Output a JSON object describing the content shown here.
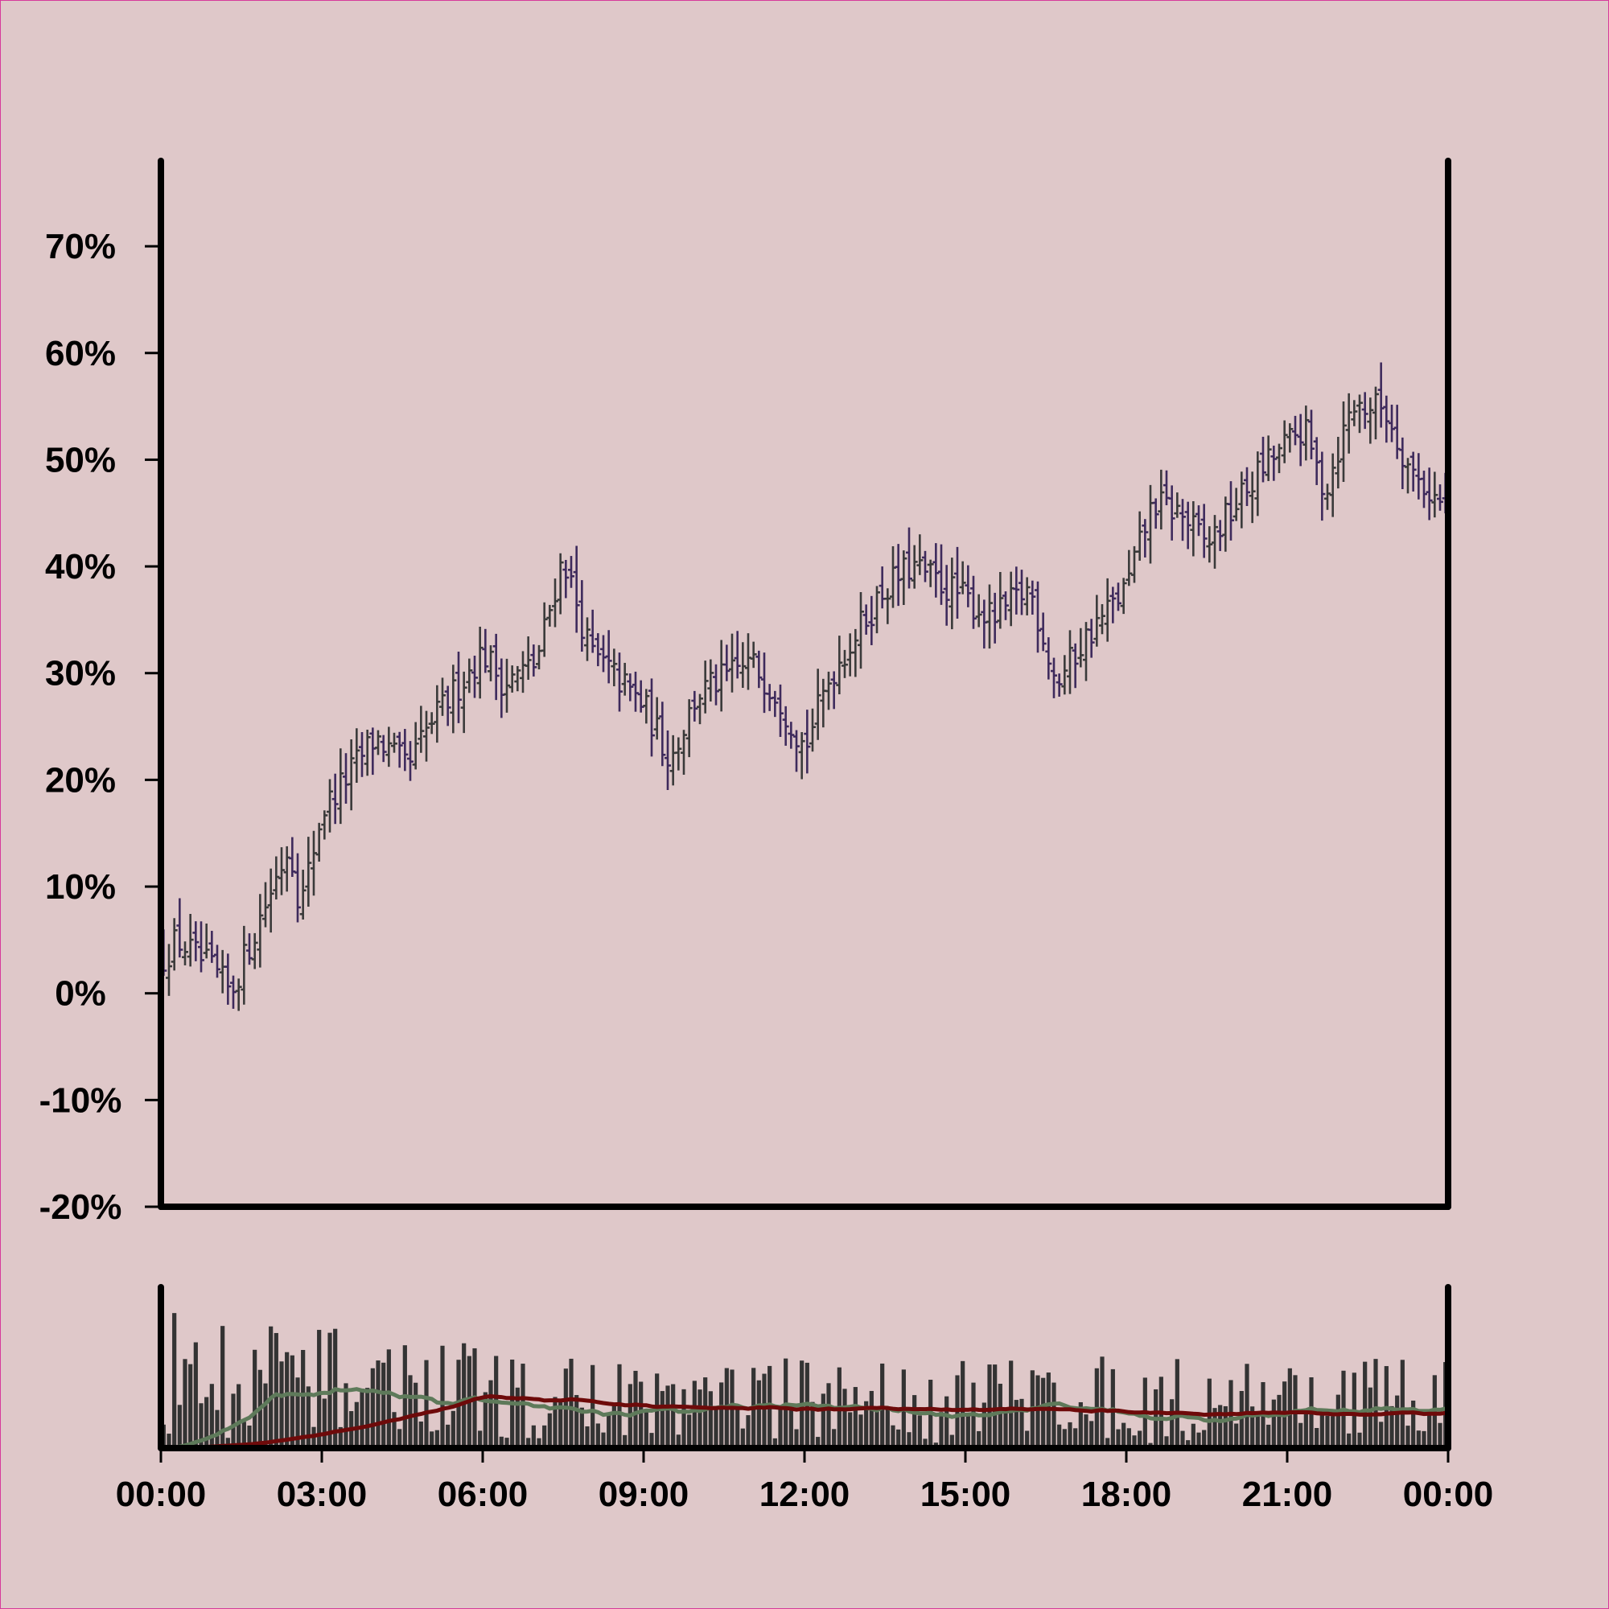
{
  "colors": {
    "background": "#dfc8c9",
    "border": "#d63a9a",
    "ohlc_up": "#3a3a3a",
    "ohlc_down": "#3e2a5c",
    "volume": "#333333",
    "ma_fast": "#5e7a5a",
    "ma_slow": "#6e0a0a",
    "axis": "#000000"
  },
  "chart_data": [
    {
      "type": "ohlc",
      "title": "",
      "xlabel": "",
      "ylabel": "",
      "ylim": [
        -20,
        78
      ],
      "y_ticks": [
        -20,
        -10,
        0,
        10,
        20,
        30,
        40,
        50,
        60,
        70
      ],
      "y_tick_labels": [
        "-20%",
        "-10%",
        "0%",
        "10%",
        "20%",
        "30%",
        "40%",
        "50%",
        "60%",
        "70%"
      ],
      "x_range_hours": [
        0,
        24
      ],
      "x_tick_labels": [
        "00:00",
        "03:00",
        "06:00",
        "09:00",
        "12:00",
        "15:00",
        "18:00",
        "21:00",
        "00:00"
      ],
      "interval_minutes": 6,
      "grid": false,
      "anchors_time_h": [
        0,
        0.3,
        1.0,
        1.3,
        2.0,
        2.4,
        2.6,
        3.0,
        4.0,
        4.6,
        5.0,
        6.0,
        6.4,
        7.0,
        7.5,
        8.0,
        9.0,
        9.5,
        10.0,
        11.0,
        11.5,
        12.0,
        12.5,
        13.5,
        14.0,
        15.0,
        15.5,
        16.2,
        16.7,
        17.2,
        18.0,
        18.5,
        19.0,
        19.5,
        20.5,
        21.3,
        21.7,
        22.2,
        22.8,
        23.3,
        24.0
      ],
      "anchors_value_pct": [
        3,
        5,
        2,
        0,
        9,
        14,
        8,
        17,
        24,
        21,
        25,
        32,
        29,
        31,
        41,
        32,
        27,
        22,
        28,
        31,
        28,
        23,
        30,
        38,
        40,
        37,
        35,
        38,
        29,
        33,
        38,
        46,
        45,
        42,
        49,
        53,
        47,
        55,
        55,
        49,
        45
      ]
    },
    {
      "type": "bar",
      "series": [
        {
          "role": "volume"
        },
        {
          "role": "moving-average-fast"
        },
        {
          "role": "moving-average-slow"
        }
      ]
    }
  ]
}
